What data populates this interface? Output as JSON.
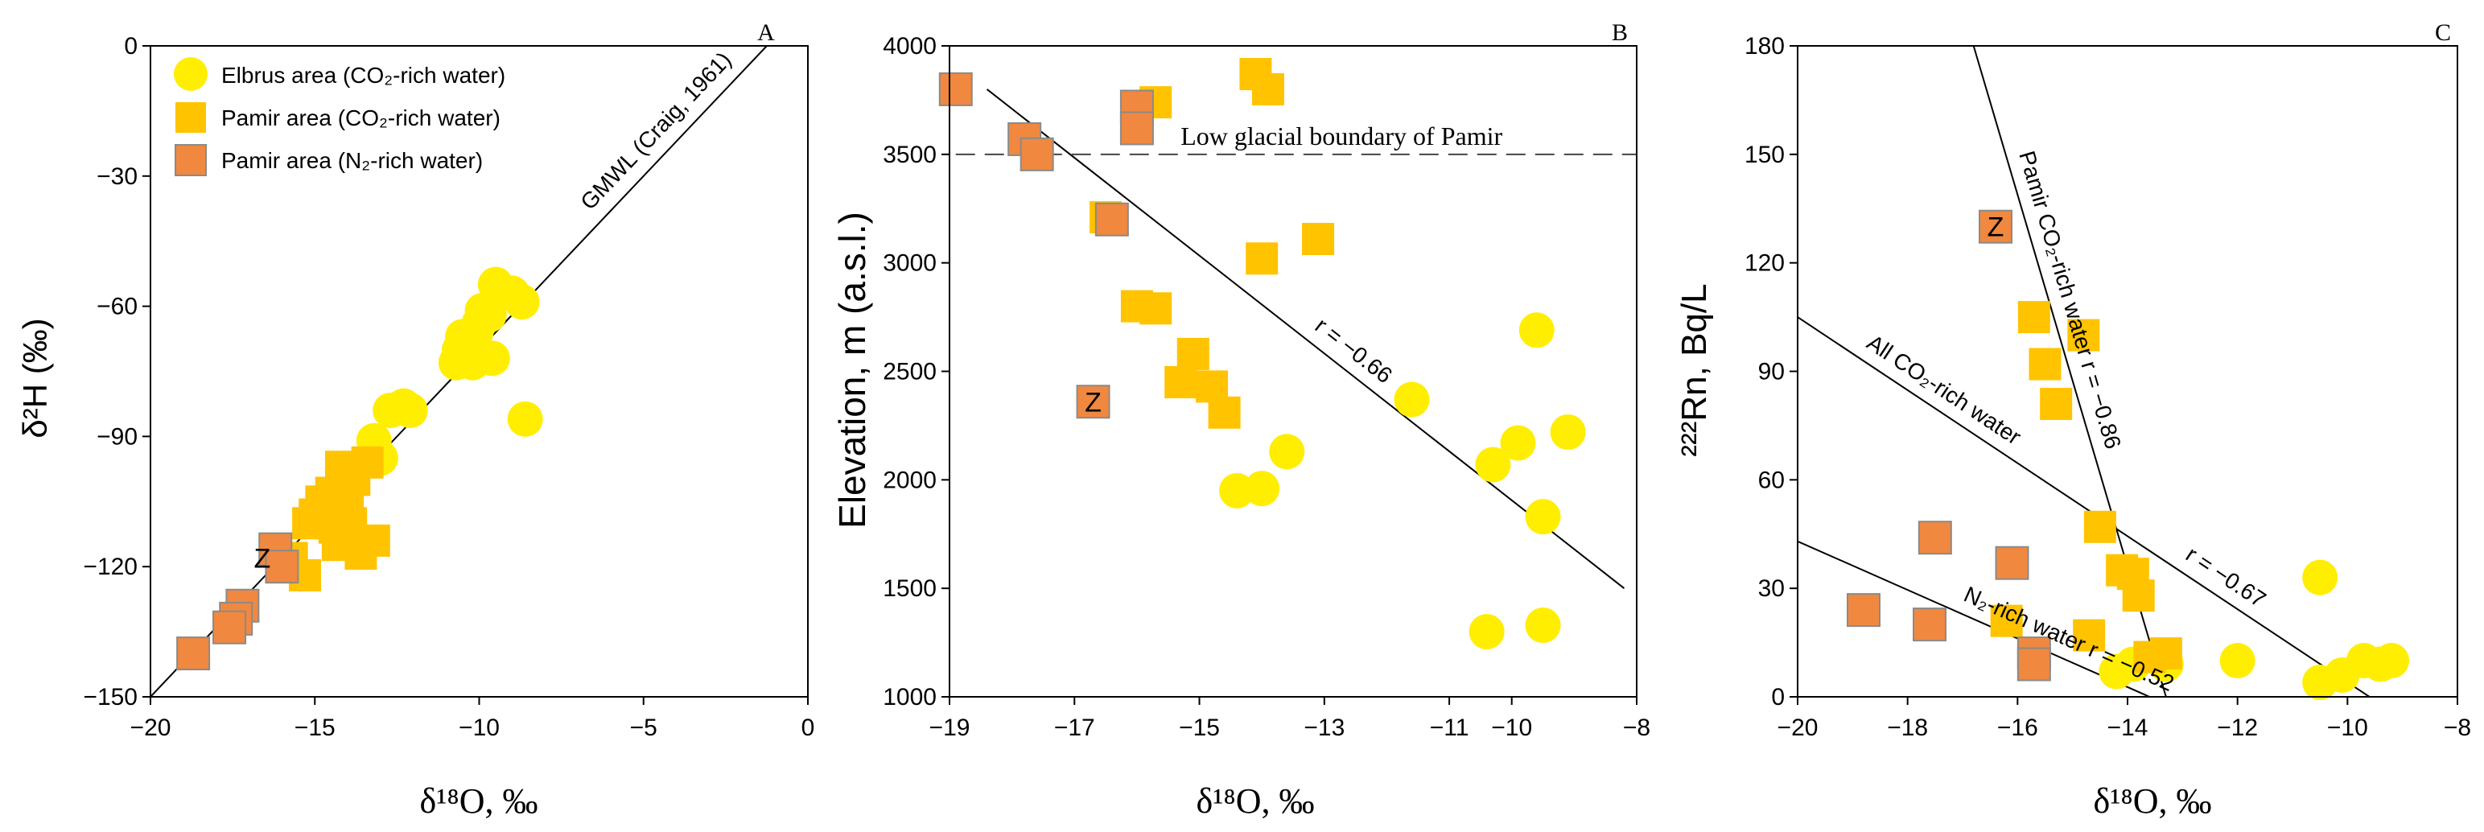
{
  "colors": {
    "elbrus": "#FFEE00",
    "pamir_co2": "#FFC300",
    "pamir_n2": "#F08840",
    "marker_edge": "#8a8a8a",
    "axis": "#000000"
  },
  "legend": {
    "elbrus": "Elbrus area (CO₂-rich water)",
    "pamir_co2": "Pamir area (CO₂-rich water)",
    "pamir_n2": "Pamir area (N₂-rich water)"
  },
  "chart_data": [
    {
      "id": "A",
      "panel_label": "A",
      "type": "scatter",
      "title": "",
      "xlabel": "δ¹⁸O, ‰",
      "ylabel": "δ²H (‰)",
      "xlim": [
        -20,
        0
      ],
      "ylim": [
        -150,
        0
      ],
      "xticks": [
        -20,
        -15,
        -10,
        -5,
        0
      ],
      "xtick_labels": [
        "−20",
        "−15",
        "−10",
        "−5",
        "0"
      ],
      "yticks": [
        -150,
        -120,
        -90,
        -60,
        -30,
        0
      ],
      "ytick_labels": [
        "−150",
        "−120",
        "−90",
        "−60",
        "−30",
        "0"
      ],
      "lines": [
        {
          "name": "GMWL",
          "label": "GMWL (Craig, 1961)",
          "x": [
            -20,
            -1.25
          ],
          "y": [
            -150,
            0
          ],
          "label_at_x": -6.3,
          "style": "solid"
        }
      ],
      "series": [
        {
          "name": "Elbrus area (CO₂-rich water)",
          "key": "elbrus",
          "shape": "circle",
          "x": [
            -9.5,
            -9.3,
            -9.0,
            -8.7,
            -9.7,
            -9.9,
            -10.0,
            -10.1,
            -10.3,
            -10.5,
            -10.6,
            -10.2,
            -9.6,
            -8.6,
            -10.7,
            -12.3,
            -12.7,
            -12.1,
            -13.2,
            -13.0
          ],
          "y": [
            -55,
            -57,
            -57,
            -59,
            -62,
            -61,
            -64,
            -66,
            -68,
            -67,
            -70,
            -73,
            -72,
            -86,
            -73,
            -83,
            -84,
            -84,
            -91,
            -95
          ]
        },
        {
          "name": "Pamir area (CO₂-rich water)",
          "key": "pamir_co2",
          "shape": "square",
          "x": [
            -14.2,
            -13.8,
            -13.4,
            -14.5,
            -14.0,
            -14.8,
            -15.0,
            -15.2,
            -14.4,
            -13.9,
            -13.2,
            -13.6,
            -14.3,
            -15.7,
            -15.9,
            -15.3
          ],
          "y": [
            -97,
            -100,
            -96,
            -103,
            -105,
            -105,
            -108,
            -110,
            -111,
            -110,
            -114,
            -117,
            -115,
            -118,
            -120,
            -122
          ]
        },
        {
          "name": "Pamir area (N₂-rich water)",
          "key": "pamir_n2",
          "shape": "square",
          "x": [
            -16.2,
            -16.0,
            -17.2,
            -17.4,
            -17.6,
            -18.7
          ],
          "y": [
            -116,
            -120,
            -129,
            -132,
            -134,
            -140
          ]
        }
      ],
      "annotations": [
        {
          "text": "Z",
          "x": -16.6,
          "y": -118
        }
      ]
    },
    {
      "id": "B",
      "panel_label": "B",
      "type": "scatter",
      "title": "",
      "xlabel": "δ¹⁸O, ‰",
      "ylabel": "Elevation, m (a.s.l.)",
      "xlim": [
        -19,
        -8
      ],
      "ylim": [
        1000,
        4000
      ],
      "xticks": [
        -19,
        -17,
        -15,
        -13,
        -11,
        -10,
        -8
      ],
      "xtick_labels": [
        "−19",
        "−17",
        "−15",
        "−13",
        "−11",
        "−10",
        "−8"
      ],
      "yticks": [
        1000,
        1500,
        2000,
        2500,
        3000,
        3500,
        4000
      ],
      "ytick_labels": [
        "1000",
        "1500",
        "2000",
        "2500",
        "3000",
        "3500",
        "4000"
      ],
      "lines": [
        {
          "name": "trend",
          "label": "r = −0.66",
          "x": [
            -18.4,
            -8.2
          ],
          "y": [
            3800,
            1500
          ],
          "label_at_x": -13.3,
          "style": "solid"
        },
        {
          "name": "glacial",
          "label": "Low glacial boundary of Pamir",
          "x": [
            -18.9,
            -8.0
          ],
          "y": [
            3500,
            3500
          ],
          "style": "dashed"
        }
      ],
      "series": [
        {
          "name": "Elbrus area (CO₂-rich water)",
          "key": "elbrus",
          "shape": "circle",
          "x": [
            -11.6,
            -10.3,
            -9.9,
            -9.5,
            -9.1,
            -9.6,
            -13.6,
            -14.0,
            -14.4,
            -10.4,
            -9.5
          ],
          "y": [
            2370,
            2070,
            2170,
            1830,
            2220,
            2690,
            2130,
            1960,
            1950,
            1300,
            1330
          ]
        },
        {
          "name": "Pamir area (CO₂-rich water)",
          "key": "pamir_co2",
          "shape": "square",
          "x": [
            -14.1,
            -13.9,
            -15.7,
            -16.5,
            -16.0,
            -15.7,
            -13.1,
            -14.0,
            -15.1,
            -15.3,
            -14.8,
            -14.6
          ],
          "y": [
            3870,
            3800,
            3740,
            3210,
            2800,
            2790,
            3110,
            3020,
            2580,
            2450,
            2430,
            2310
          ]
        },
        {
          "name": "Pamir area (N₂-rich water)",
          "key": "pamir_n2",
          "shape": "square",
          "x": [
            -18.9,
            -17.8,
            -17.6,
            -16.0,
            -16.0,
            -16.4,
            -16.7
          ],
          "y": [
            3800,
            3570,
            3500,
            3720,
            3620,
            3200,
            2360
          ]
        }
      ],
      "annotations": [
        {
          "text": "Z",
          "x": -16.7,
          "y": 2360
        }
      ]
    },
    {
      "id": "C",
      "panel_label": "C",
      "type": "scatter",
      "title": "",
      "xlabel": "δ¹⁸O, ‰",
      "ylabel": "²²²Rn, Bq/L",
      "xlim": [
        -20,
        -8
      ],
      "ylim": [
        0,
        180
      ],
      "xticks": [
        -20,
        -18,
        -16,
        -14,
        -12,
        -10,
        -8
      ],
      "xtick_labels": [
        "−20",
        "−18",
        "−16",
        "−14",
        "−12",
        "−10",
        "−8"
      ],
      "yticks": [
        0,
        30,
        60,
        90,
        120,
        150,
        180
      ],
      "ytick_labels": [
        "0",
        "30",
        "60",
        "90",
        "120",
        "150",
        "180"
      ],
      "lines": [
        {
          "name": "pamir_co2_fit",
          "label": "Pamir CO₂-rich water r = −0.86",
          "x": [
            -16.8,
            -13.3
          ],
          "y": [
            180,
            0
          ],
          "label_at_x": -16.2,
          "style": "solid"
        },
        {
          "name": "all_co2_fit",
          "label": "All CO₂-rich water",
          "x": [
            -20,
            -9.6
          ],
          "y": [
            105,
            0
          ],
          "label_at_x": -18.9,
          "style": "solid"
        },
        {
          "name": "all_co2_r",
          "label": "r = −0.67",
          "x": [
            -20,
            -9.6
          ],
          "y": [
            105,
            0
          ],
          "label_at_x": -13.1,
          "style": "none"
        },
        {
          "name": "n2_fit",
          "label": "N₂-rich water r = −0.52",
          "x": [
            -20,
            -13.6
          ],
          "y": [
            43,
            0
          ],
          "label_at_x": -17.1,
          "style": "solid"
        }
      ],
      "series": [
        {
          "name": "Elbrus area (CO₂-rich water)",
          "key": "elbrus",
          "shape": "circle",
          "x": [
            -10.5,
            -14.2,
            -13.9,
            -13.3,
            -12.0,
            -10.5,
            -10.1,
            -9.7,
            -9.4,
            -9.2
          ],
          "y": [
            33,
            7,
            9,
            9,
            10,
            4,
            6,
            10,
            9,
            10
          ]
        },
        {
          "name": "Pamir area (CO₂-rich water)",
          "key": "pamir_co2",
          "shape": "square",
          "x": [
            -15.7,
            -14.8,
            -15.5,
            -15.3,
            -14.5,
            -14.1,
            -13.9,
            -13.8,
            -16.2,
            -14.7,
            -13.6,
            -13.3
          ],
          "y": [
            105,
            100,
            92,
            81,
            47,
            35,
            34,
            28,
            21,
            17,
            11,
            12
          ]
        },
        {
          "name": "Pamir area (N₂-rich water)",
          "key": "pamir_n2",
          "shape": "square",
          "x": [
            -16.4,
            -17.5,
            -16.1,
            -18.8,
            -17.6,
            -15.7,
            -15.7
          ],
          "y": [
            130,
            44,
            37,
            24,
            20,
            12,
            9
          ]
        }
      ],
      "annotations": [
        {
          "text": "Z",
          "x": -16.4,
          "y": 130
        }
      ]
    }
  ]
}
